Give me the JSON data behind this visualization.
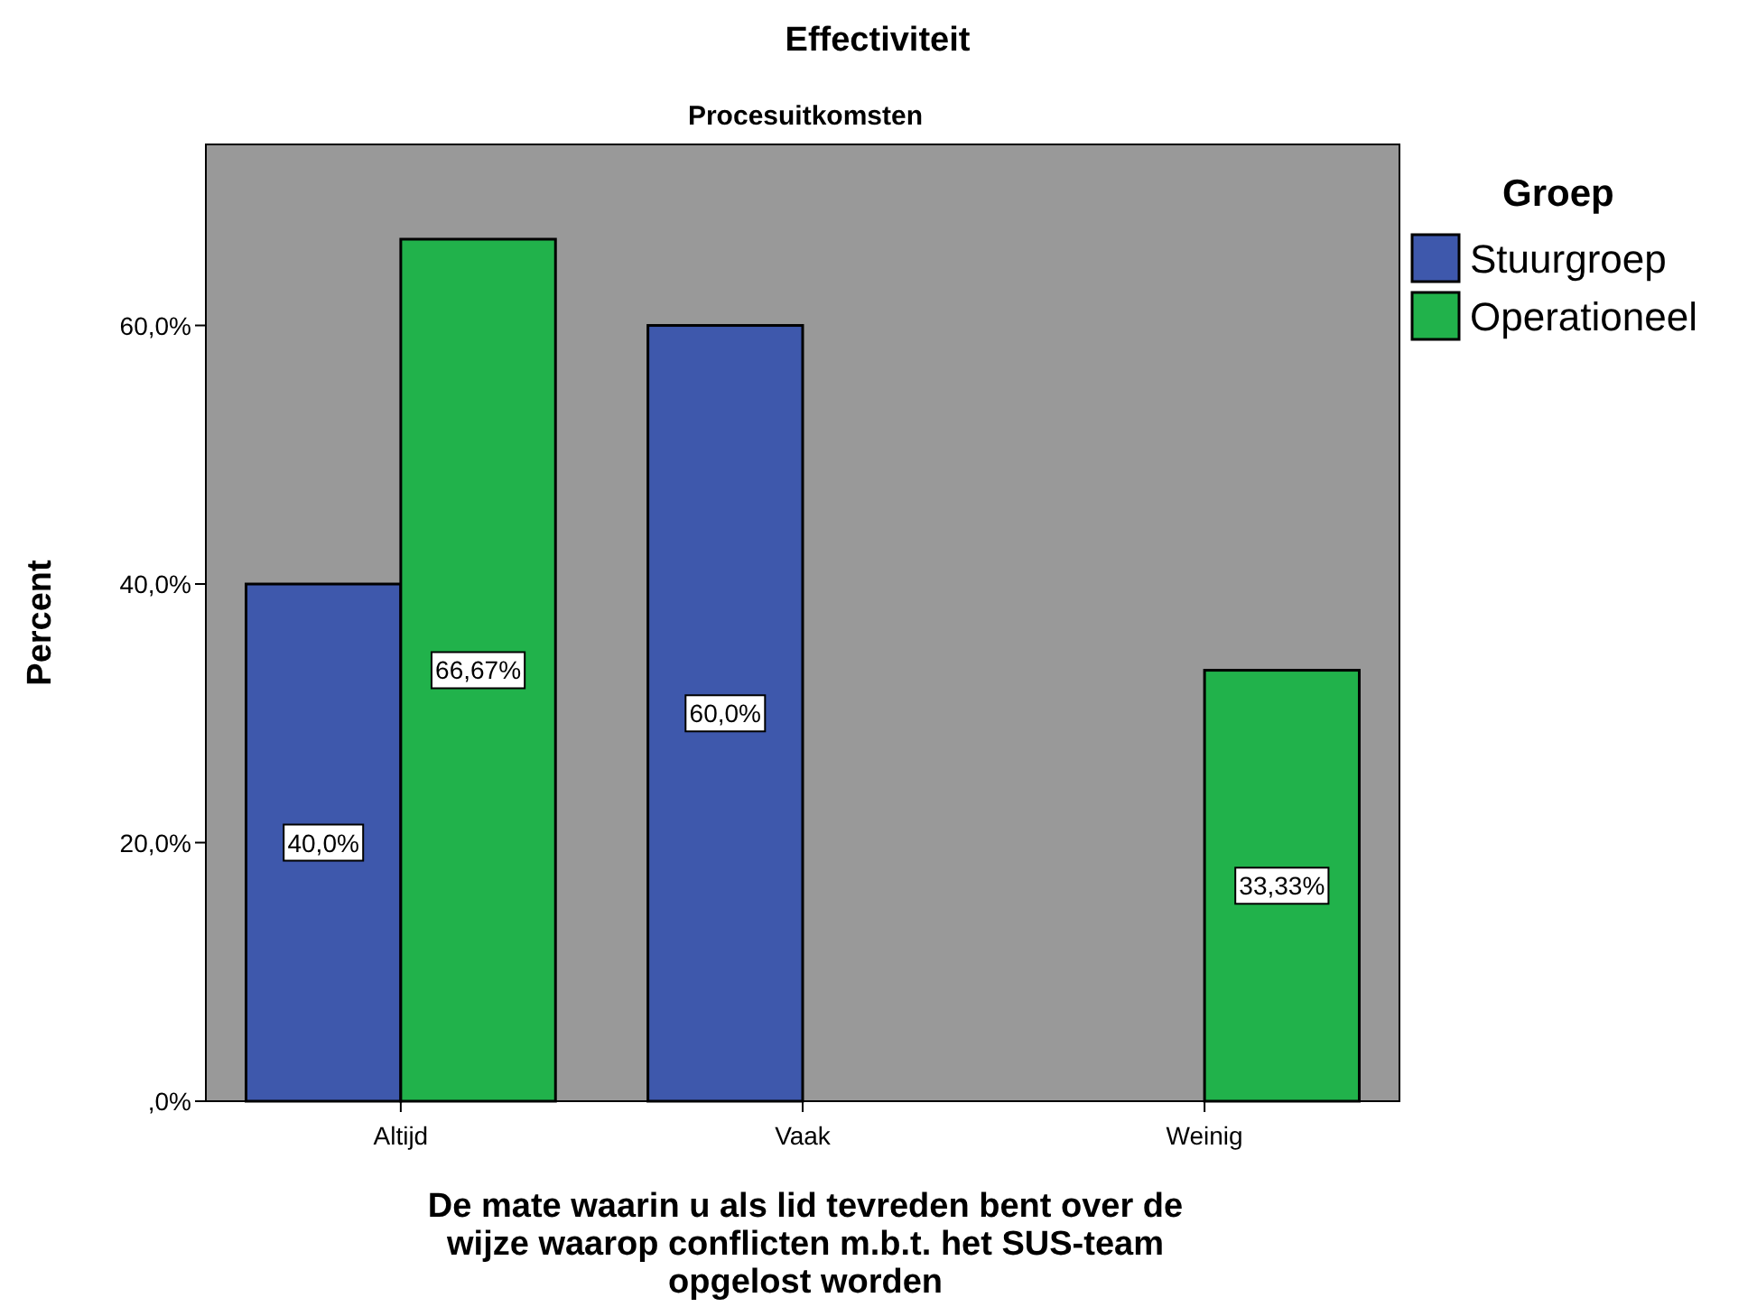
{
  "chart_data": {
    "type": "bar",
    "title": "Effectiviteit",
    "subtitle": "Procesuitkomsten",
    "xlabel": "De mate waarin u als lid tevreden bent over de wijze waarop conflicten m.b.t. het SUS-team opgelost worden",
    "ylabel": "Percent",
    "legend_title": "Groep",
    "categories": [
      "Altijd",
      "Vaak",
      "Weinig"
    ],
    "series": [
      {
        "name": "Stuurgroep",
        "color": "#3e58ac",
        "values": [
          40,
          60,
          0
        ],
        "value_labels": [
          "40,0%",
          "60,0%",
          null
        ]
      },
      {
        "name": "Operationeel",
        "color": "#21b24b",
        "values": [
          66.67,
          0,
          33.33
        ],
        "value_labels": [
          "66,67%",
          null,
          "33,33%"
        ]
      }
    ],
    "ylim": [
      0,
      74
    ],
    "yticks": [
      {
        "value": 0,
        "label": ",0%"
      },
      {
        "value": 20,
        "label": "20,0%"
      },
      {
        "value": 40,
        "label": "40,0%"
      },
      {
        "value": 60,
        "label": "60,0%"
      }
    ],
    "grid": false,
    "legend": "right"
  }
}
